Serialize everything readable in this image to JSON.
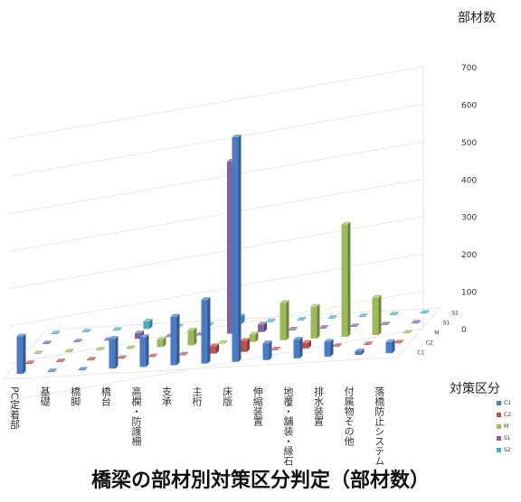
{
  "chart_data": {
    "type": "bar",
    "subtype": "3d-column",
    "title": "橋梁の部材別対策区分判定（部材数）",
    "ylabel": "部材数",
    "zlabel": "対策区分",
    "ylim": [
      0,
      700
    ],
    "yticks": [
      "0",
      "100",
      "200",
      "300",
      "400",
      "500",
      "600",
      "700"
    ],
    "legend_position": "right",
    "categories": [
      "PC定着部",
      "基礎",
      "橋脚",
      "橋台",
      "高欄・防護柵",
      "支承",
      "主桁",
      "床版",
      "伸縮装置",
      "地覆・舗装・縁石",
      "排水装置",
      "付属物その他",
      "落橋防止システム"
    ],
    "series": [
      {
        "name": "C1",
        "color": "#4a7cc5",
        "values": [
          100,
          0,
          0,
          80,
          80,
          130,
          170,
          600,
          45,
          50,
          40,
          10,
          30
        ]
      },
      {
        "name": "C2",
        "color": "#c0504d",
        "values": [
          0,
          0,
          0,
          0,
          0,
          0,
          20,
          30,
          0,
          15,
          0,
          0,
          0
        ]
      },
      {
        "name": "M",
        "color": "#9bbb59",
        "values": [
          0,
          0,
          0,
          0,
          20,
          40,
          0,
          20,
          100,
          85,
          300,
          100,
          0
        ]
      },
      {
        "name": "S1",
        "color": "#8064a2",
        "values": [
          0,
          0,
          0,
          15,
          0,
          0,
          460,
          20,
          0,
          0,
          0,
          0,
          0
        ]
      },
      {
        "name": "S2",
        "color": "#4bacc6",
        "values": [
          0,
          0,
          0,
          20,
          0,
          0,
          20,
          0,
          0,
          0,
          0,
          0,
          0
        ]
      }
    ]
  }
}
